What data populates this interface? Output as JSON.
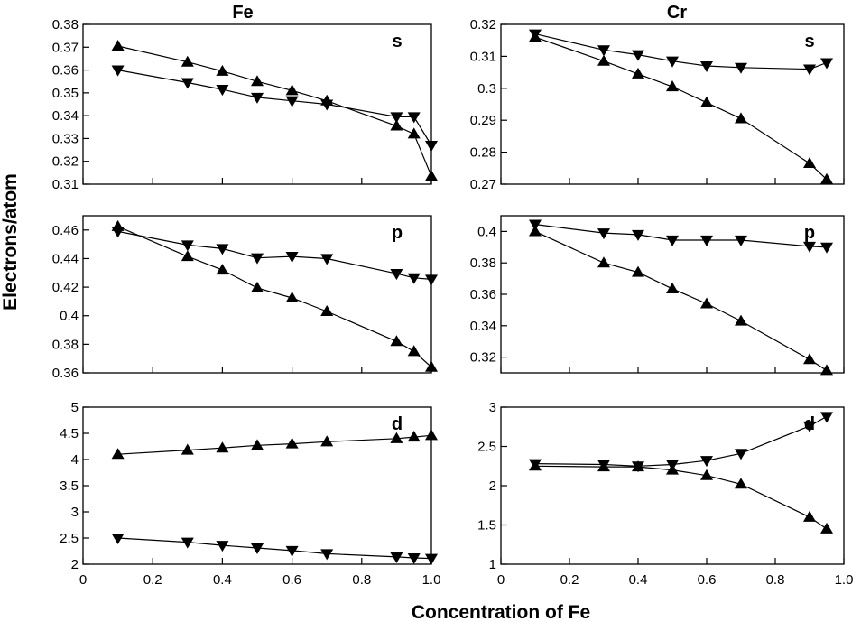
{
  "figure": {
    "xlabel": "Concentration of Fe",
    "ylabel": "Electrons/atom",
    "columns": [
      "Fe",
      "Cr"
    ]
  },
  "chart_data": [
    {
      "id": "fe-s",
      "type": "line",
      "column_title": "Fe",
      "label": "s",
      "xlim": [
        0,
        1.0
      ],
      "ylim": [
        0.31,
        0.38
      ],
      "yticks": [
        0.31,
        0.32,
        0.33,
        0.34,
        0.35,
        0.36,
        0.37,
        0.38
      ],
      "ytick_labels": [
        "0.31",
        "0.32",
        "0.33",
        "0.34",
        "0.35",
        "0.36",
        "0.37",
        "0.38"
      ],
      "xticks": [
        0,
        0.2,
        0.4,
        0.6,
        0.8,
        1.0
      ],
      "show_xtick_labels": false,
      "series": [
        {
          "name": "up",
          "marker": "triangle-up",
          "x": [
            0.1,
            0.3,
            0.4,
            0.5,
            0.6,
            0.7,
            0.9,
            0.95,
            1.0
          ],
          "y": [
            0.3705,
            0.3635,
            0.3595,
            0.355,
            0.351,
            0.3465,
            0.3355,
            0.332,
            0.3135
          ]
        },
        {
          "name": "down",
          "marker": "triangle-down",
          "x": [
            0.1,
            0.3,
            0.4,
            0.5,
            0.6,
            0.7,
            0.9,
            0.95,
            1.0
          ],
          "y": [
            0.36,
            0.3545,
            0.3515,
            0.348,
            0.3465,
            0.345,
            0.3395,
            0.3395,
            0.327
          ]
        }
      ]
    },
    {
      "id": "cr-s",
      "type": "line",
      "column_title": "Cr",
      "label": "s",
      "xlim": [
        0,
        1.0
      ],
      "ylim": [
        0.27,
        0.32
      ],
      "yticks": [
        0.27,
        0.28,
        0.29,
        0.3,
        0.31,
        0.32
      ],
      "ytick_labels": [
        "0.27",
        "0.28",
        "0.29",
        "0.3",
        "0.31",
        "0.32"
      ],
      "xticks": [
        0,
        0.2,
        0.4,
        0.6,
        0.8,
        1.0
      ],
      "show_xtick_labels": false,
      "series": [
        {
          "name": "up",
          "marker": "triangle-up",
          "x": [
            0.1,
            0.3,
            0.4,
            0.5,
            0.6,
            0.7,
            0.9,
            0.95
          ],
          "y": [
            0.316,
            0.3085,
            0.3045,
            0.3005,
            0.2955,
            0.2905,
            0.2765,
            0.2715
          ]
        },
        {
          "name": "down",
          "marker": "triangle-down",
          "x": [
            0.1,
            0.3,
            0.4,
            0.5,
            0.6,
            0.7,
            0.9,
            0.95
          ],
          "y": [
            0.317,
            0.312,
            0.3105,
            0.3085,
            0.307,
            0.3065,
            0.306,
            0.308
          ]
        }
      ]
    },
    {
      "id": "fe-p",
      "type": "line",
      "label": "p",
      "xlim": [
        0,
        1.0
      ],
      "ylim": [
        0.36,
        0.47
      ],
      "yticks": [
        0.36,
        0.38,
        0.4,
        0.42,
        0.44,
        0.46
      ],
      "ytick_labels": [
        "0.36",
        "0.38",
        "0.4",
        "0.42",
        "0.44",
        "0.46"
      ],
      "xticks": [
        0,
        0.2,
        0.4,
        0.6,
        0.8,
        1.0
      ],
      "show_xtick_labels": false,
      "series": [
        {
          "name": "up",
          "marker": "triangle-up",
          "x": [
            0.1,
            0.3,
            0.4,
            0.5,
            0.6,
            0.7,
            0.9,
            0.95,
            1.0
          ],
          "y": [
            0.4625,
            0.4415,
            0.432,
            0.4195,
            0.4125,
            0.403,
            0.382,
            0.375,
            0.364
          ]
        },
        {
          "name": "down",
          "marker": "triangle-down",
          "x": [
            0.1,
            0.3,
            0.4,
            0.5,
            0.6,
            0.7,
            0.9,
            0.95,
            1.0
          ],
          "y": [
            0.459,
            0.4495,
            0.447,
            0.4405,
            0.4415,
            0.44,
            0.4295,
            0.4265,
            0.4255
          ]
        }
      ]
    },
    {
      "id": "cr-p",
      "type": "line",
      "label": "p",
      "xlim": [
        0,
        1.0
      ],
      "ylim": [
        0.31,
        0.41
      ],
      "yticks": [
        0.32,
        0.34,
        0.36,
        0.38,
        0.4
      ],
      "ytick_labels": [
        "0.32",
        "0.34",
        "0.36",
        "0.38",
        "0.4"
      ],
      "xticks": [
        0,
        0.2,
        0.4,
        0.6,
        0.8,
        1.0
      ],
      "show_xtick_labels": false,
      "series": [
        {
          "name": "up",
          "marker": "triangle-up",
          "x": [
            0.1,
            0.3,
            0.4,
            0.5,
            0.6,
            0.7,
            0.9,
            0.95
          ],
          "y": [
            0.4,
            0.38,
            0.374,
            0.3635,
            0.354,
            0.343,
            0.3185,
            0.3115
          ]
        },
        {
          "name": "down",
          "marker": "triangle-down",
          "x": [
            0.1,
            0.3,
            0.4,
            0.5,
            0.6,
            0.7,
            0.9,
            0.95
          ],
          "y": [
            0.4045,
            0.399,
            0.398,
            0.3945,
            0.3945,
            0.3945,
            0.3905,
            0.39
          ]
        }
      ]
    },
    {
      "id": "fe-d",
      "type": "line",
      "label": "d",
      "xlim": [
        0,
        1.0
      ],
      "ylim": [
        2,
        5
      ],
      "yticks": [
        2,
        2.5,
        3,
        3.5,
        4,
        4.5,
        5
      ],
      "ytick_labels": [
        "2",
        "2.5",
        "3",
        "3.5",
        "4",
        "4.5",
        "5"
      ],
      "xticks": [
        0,
        0.2,
        0.4,
        0.6,
        0.8,
        1.0
      ],
      "show_xtick_labels": true,
      "xtick_labels": [
        "0",
        "0.2",
        "0.4",
        "0.6",
        "0.8",
        "1.0"
      ],
      "series": [
        {
          "name": "up",
          "marker": "triangle-up",
          "x": [
            0.1,
            0.3,
            0.4,
            0.5,
            0.6,
            0.7,
            0.9,
            0.95,
            1.0
          ],
          "y": [
            4.1,
            4.18,
            4.22,
            4.27,
            4.3,
            4.34,
            4.4,
            4.43,
            4.46
          ]
        },
        {
          "name": "down",
          "marker": "triangle-down",
          "x": [
            0.1,
            0.3,
            0.4,
            0.5,
            0.6,
            0.7,
            0.9,
            0.95,
            1.0
          ],
          "y": [
            2.5,
            2.42,
            2.36,
            2.31,
            2.26,
            2.2,
            2.14,
            2.12,
            2.11
          ]
        }
      ]
    },
    {
      "id": "cr-d",
      "type": "line",
      "label": "d",
      "xlim": [
        0,
        1.0
      ],
      "ylim": [
        1,
        3
      ],
      "yticks": [
        1,
        1.5,
        2,
        2.5,
        3
      ],
      "ytick_labels": [
        "1",
        "1.5",
        "2",
        "2.5",
        "3"
      ],
      "xticks": [
        0,
        0.2,
        0.4,
        0.6,
        0.8,
        1.0
      ],
      "show_xtick_labels": true,
      "xtick_labels": [
        "0",
        "0.2",
        "0.4",
        "0.6",
        "0.8",
        "1.0"
      ],
      "series": [
        {
          "name": "up",
          "marker": "triangle-up",
          "x": [
            0.1,
            0.3,
            0.4,
            0.5,
            0.6,
            0.7,
            0.9,
            0.95
          ],
          "y": [
            2.25,
            2.24,
            2.24,
            2.2,
            2.13,
            2.02,
            1.6,
            1.45
          ]
        },
        {
          "name": "down",
          "marker": "triangle-down",
          "x": [
            0.1,
            0.3,
            0.4,
            0.5,
            0.6,
            0.7,
            0.9,
            0.95
          ],
          "y": [
            2.28,
            2.27,
            2.25,
            2.27,
            2.32,
            2.41,
            2.76,
            2.88
          ]
        }
      ]
    }
  ]
}
